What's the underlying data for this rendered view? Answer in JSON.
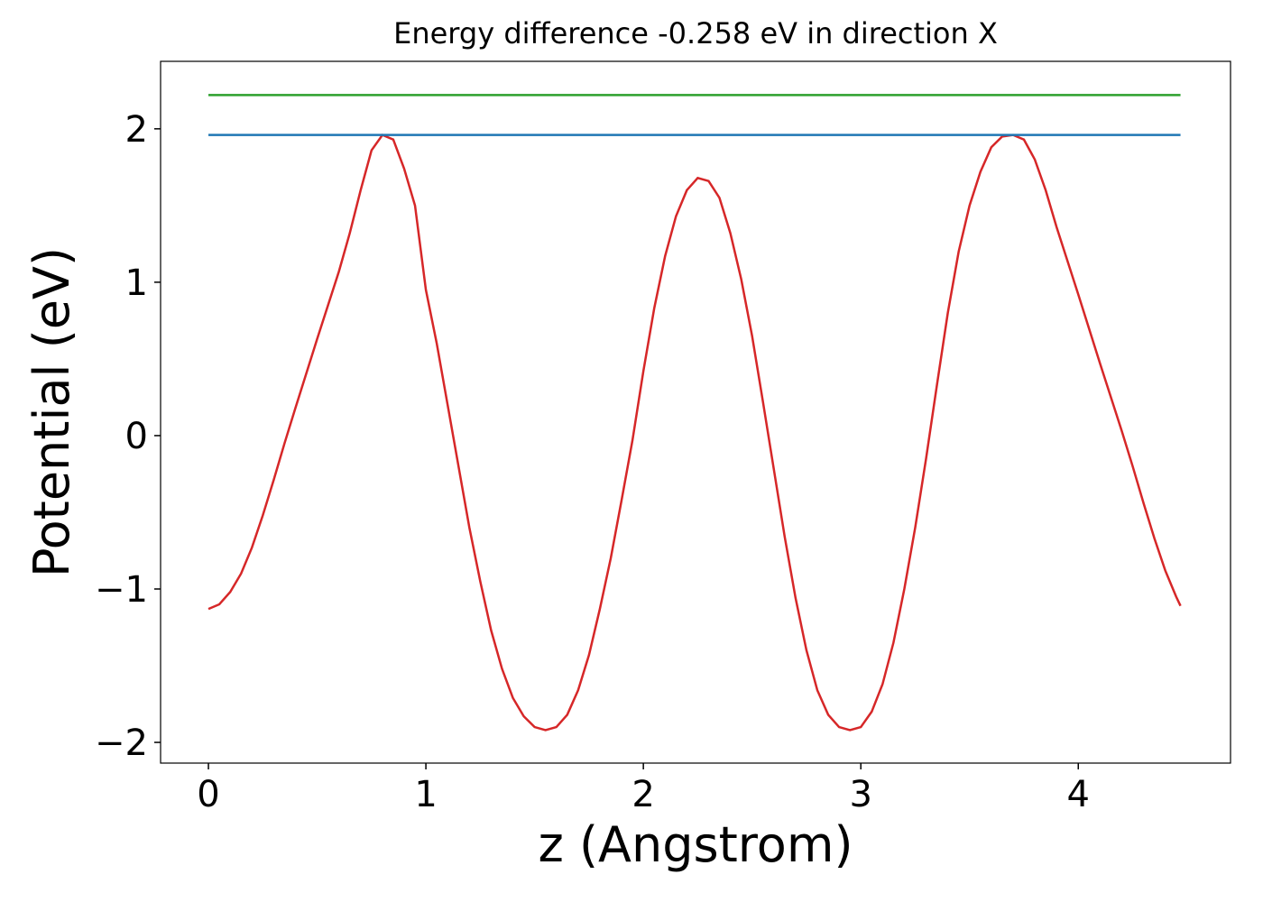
{
  "chart_data": {
    "type": "line",
    "title": "Energy difference -0.258 eV in direction X",
    "xlabel": "z (Angstrom)",
    "ylabel": "Potential (eV)",
    "xlim": [
      -0.22,
      4.7
    ],
    "ylim": [
      -2.135,
      2.44
    ],
    "xticks": [
      0,
      1,
      2,
      3,
      4
    ],
    "yticks": [
      {
        "value": -2,
        "label": "−2"
      },
      {
        "value": -1,
        "label": "−1"
      },
      0,
      1,
      2
    ],
    "grid": false,
    "series": [
      {
        "color": "#d62728",
        "x": [
          0,
          0.05,
          0.1,
          0.15,
          0.2,
          0.25,
          0.3,
          0.35,
          0.4,
          0.5,
          0.6,
          0.65,
          0.7,
          0.75,
          0.8,
          0.85,
          0.9,
          0.95,
          1.0,
          1.05,
          1.1,
          1.15,
          1.2,
          1.25,
          1.3,
          1.35,
          1.4,
          1.45,
          1.5,
          1.55,
          1.6,
          1.65,
          1.7,
          1.75,
          1.8,
          1.85,
          1.9,
          1.95,
          2.0,
          2.05,
          2.1,
          2.15,
          2.2,
          2.25,
          2.3,
          2.35,
          2.4,
          2.45,
          2.5,
          2.55,
          2.6,
          2.65,
          2.7,
          2.75,
          2.8,
          2.85,
          2.9,
          2.95,
          3.0,
          3.05,
          3.1,
          3.15,
          3.2,
          3.25,
          3.3,
          3.35,
          3.4,
          3.45,
          3.5,
          3.55,
          3.6,
          3.65,
          3.7,
          3.75,
          3.8,
          3.85,
          3.9,
          4.0,
          4.1,
          4.2,
          4.25,
          4.3,
          4.35,
          4.4,
          4.45,
          4.47
        ],
        "values": [
          -1.13,
          -1.1,
          -1.02,
          -0.9,
          -0.73,
          -0.52,
          -0.29,
          -0.05,
          0.18,
          0.63,
          1.07,
          1.32,
          1.6,
          1.86,
          1.96,
          1.93,
          1.74,
          1.5,
          0.95,
          0.6,
          0.2,
          -0.2,
          -0.6,
          -0.95,
          -1.27,
          -1.52,
          -1.71,
          -1.83,
          -1.9,
          -1.92,
          -1.9,
          -1.82,
          -1.66,
          -1.43,
          -1.13,
          -0.8,
          -0.42,
          -0.03,
          0.42,
          0.83,
          1.17,
          1.43,
          1.6,
          1.68,
          1.66,
          1.55,
          1.32,
          1.02,
          0.65,
          0.22,
          -0.22,
          -0.66,
          -1.06,
          -1.4,
          -1.66,
          -1.82,
          -1.9,
          -1.92,
          -1.9,
          -1.8,
          -1.62,
          -1.35,
          -1.0,
          -0.6,
          -0.15,
          0.33,
          0.8,
          1.2,
          1.5,
          1.72,
          1.88,
          1.95,
          1.96,
          1.93,
          1.8,
          1.6,
          1.36,
          0.92,
          0.47,
          0.03,
          -0.2,
          -0.44,
          -0.67,
          -0.88,
          -1.05,
          -1.11
        ]
      },
      {
        "color": "#1f77b4",
        "x": [
          0,
          4.47
        ],
        "values": [
          1.96,
          1.96
        ]
      },
      {
        "color": "#2ca02c",
        "x": [
          0,
          4.47
        ],
        "values": [
          2.22,
          2.22
        ]
      }
    ]
  }
}
